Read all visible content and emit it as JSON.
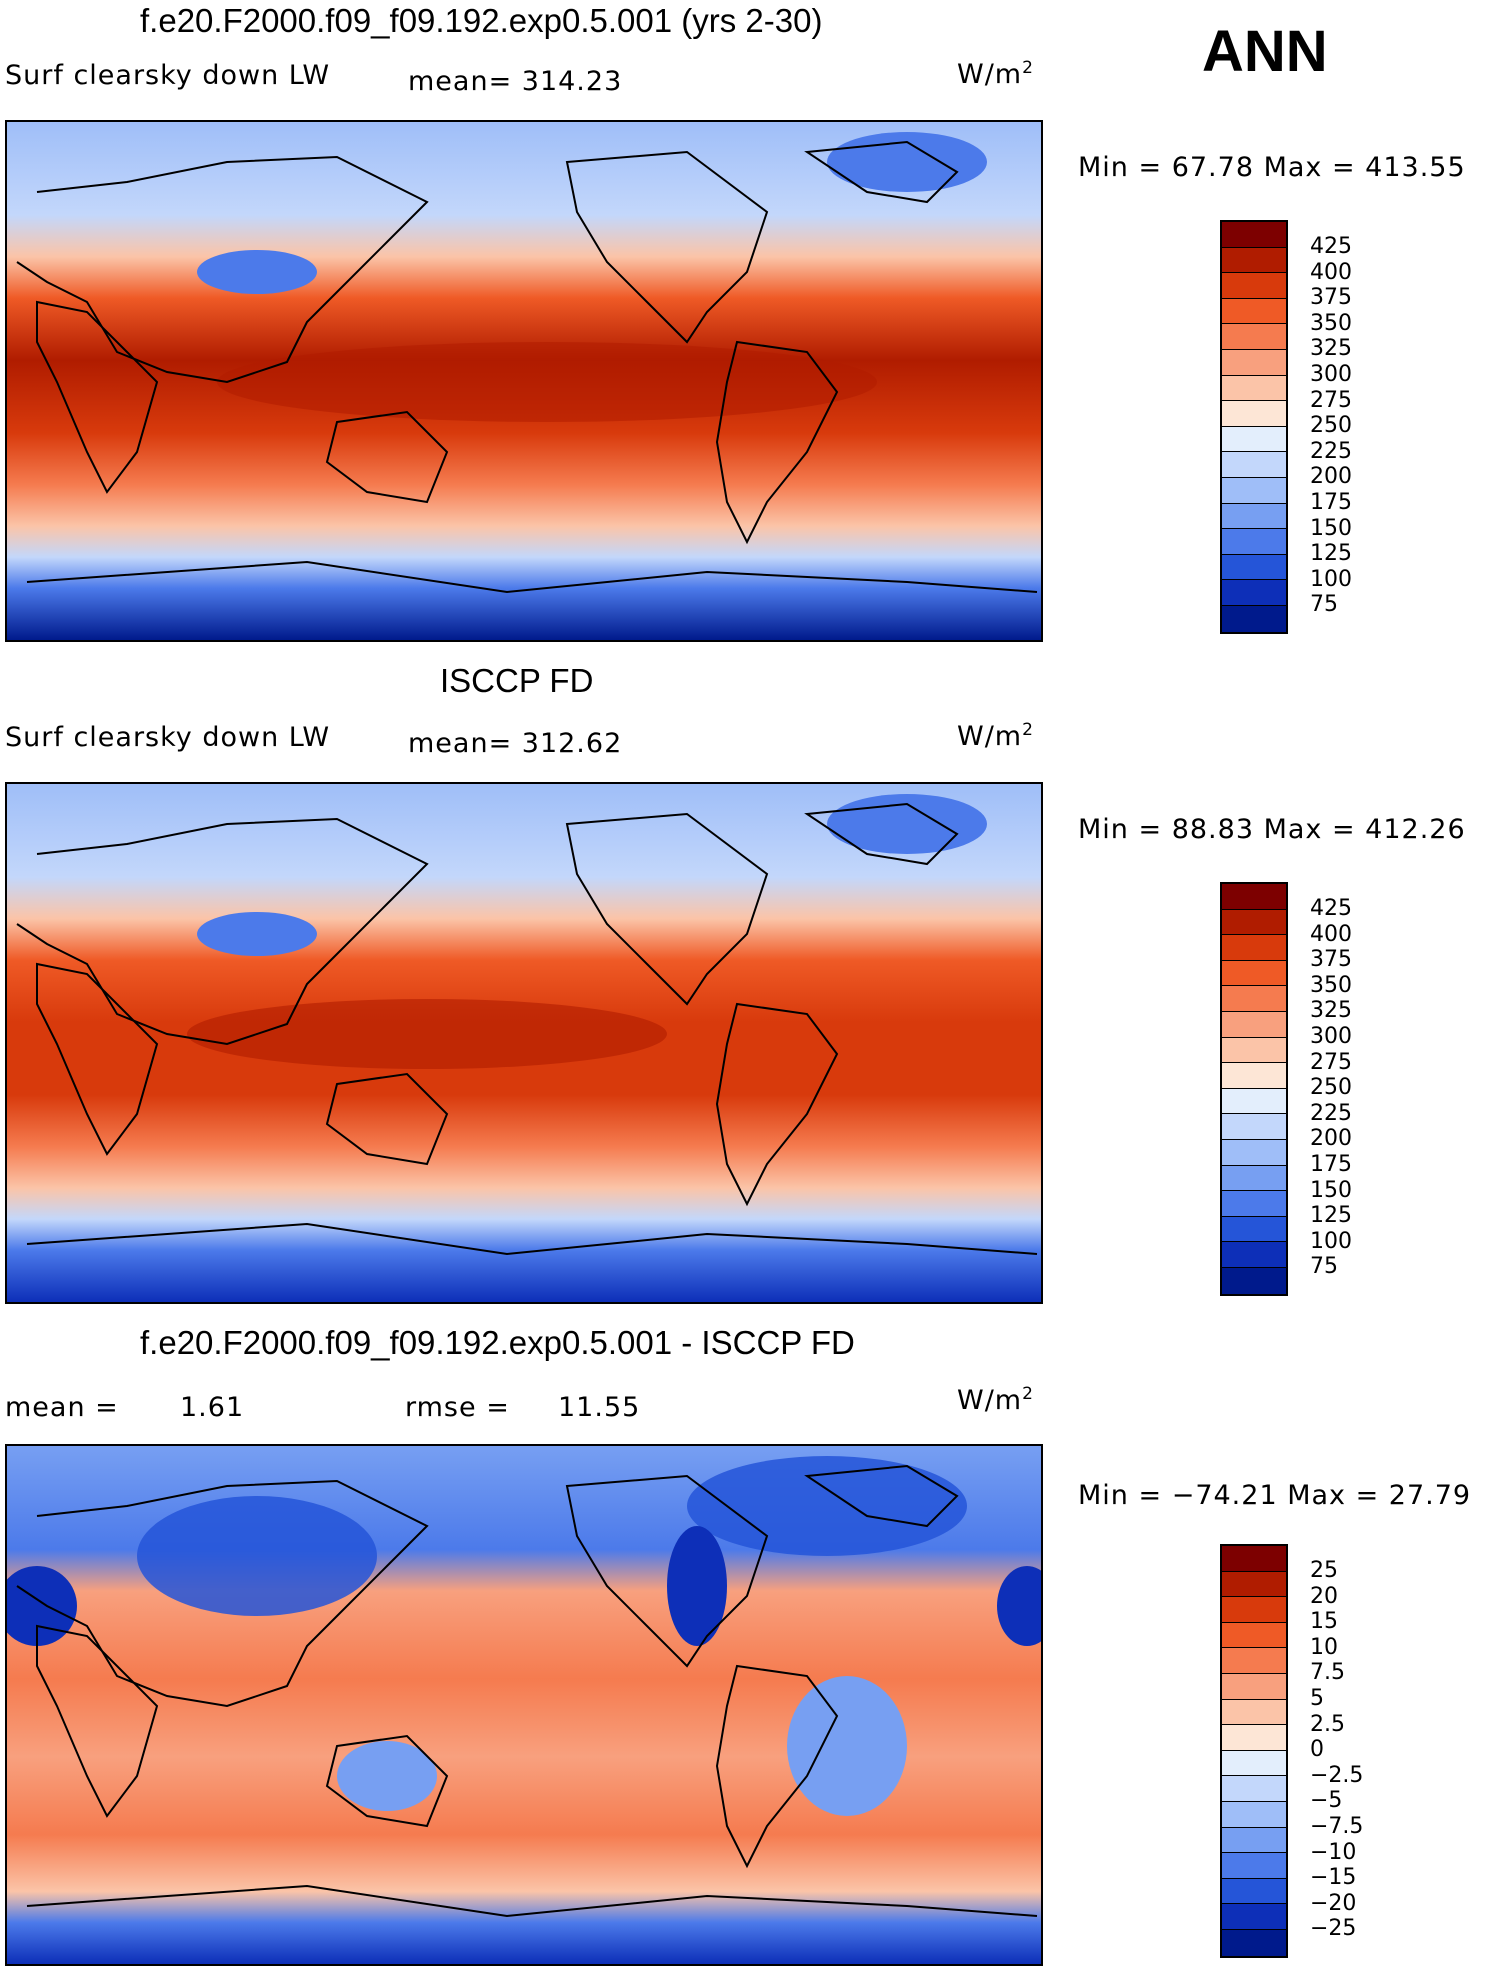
{
  "season": "ANN",
  "units_label": "W/m",
  "units_exp": "2",
  "panels": [
    {
      "title": "f.e20.F2000.f09_f09.192.exp0.5.001 (yrs 2-30)",
      "variable": "Surf clearsky down LW",
      "mean_text": "mean= 314.23",
      "minmax_text": "Min =   67.78 Max = 413.55",
      "colorbar": [
        "425",
        "400",
        "375",
        "350",
        "325",
        "300",
        "275",
        "250",
        "225",
        "200",
        "175",
        "150",
        "125",
        "100",
        "75"
      ]
    },
    {
      "title": "ISCCP FD",
      "variable": "Surf clearsky down LW",
      "mean_text": "mean= 312.62",
      "minmax_text": "Min =   88.83 Max = 412.26",
      "colorbar": [
        "425",
        "400",
        "375",
        "350",
        "325",
        "300",
        "275",
        "250",
        "225",
        "200",
        "175",
        "150",
        "125",
        "100",
        "75"
      ]
    },
    {
      "title": "f.e20.F2000.f09_f09.192.exp0.5.001 - ISCCP FD",
      "mean_label": "mean =",
      "mean_value": "1.61",
      "rmse_label": "rmse =",
      "rmse_value": "11.55",
      "minmax_text": "Min = −74.21 Max =   27.79",
      "colorbar": [
        "25",
        "20",
        "15",
        "10",
        "7.5",
        "5",
        "2.5",
        "0",
        "−2.5",
        "−5",
        "−7.5",
        "−10",
        "−15",
        "−20",
        "−25"
      ]
    }
  ],
  "palette": [
    "#7d0000",
    "#b01c00",
    "#d83a0c",
    "#ef5a26",
    "#f57b4f",
    "#f8a07e",
    "#fbc4a8",
    "#fde6d6",
    "#e3eefc",
    "#c3d7fb",
    "#9fbef8",
    "#779ff2",
    "#4c7aea",
    "#2555d8",
    "#0d2fb8",
    "#001a8c"
  ]
}
